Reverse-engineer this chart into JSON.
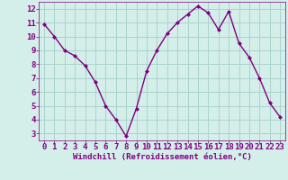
{
  "x": [
    0,
    1,
    2,
    3,
    4,
    5,
    6,
    7,
    8,
    9,
    10,
    11,
    12,
    13,
    14,
    15,
    16,
    17,
    18,
    19,
    20,
    21,
    22,
    23
  ],
  "y": [
    10.9,
    10.0,
    9.0,
    8.6,
    7.9,
    6.7,
    5.0,
    4.0,
    2.8,
    4.8,
    7.5,
    9.0,
    10.2,
    11.0,
    11.6,
    12.2,
    11.7,
    10.5,
    11.8,
    9.5,
    8.5,
    7.0,
    5.2,
    4.2
  ],
  "line_color": "#800080",
  "marker": "D",
  "marker_size": 2.0,
  "bg_color": "#d4eeea",
  "grid_color": "#aad4cc",
  "xlabel": "Windchill (Refroidissement éolien,°C)",
  "tick_color": "#800080",
  "xlim": [
    -0.5,
    23.5
  ],
  "ylim": [
    2.5,
    12.5
  ],
  "yticks": [
    3,
    4,
    5,
    6,
    7,
    8,
    9,
    10,
    11,
    12
  ],
  "xticks": [
    0,
    1,
    2,
    3,
    4,
    5,
    6,
    7,
    8,
    9,
    10,
    11,
    12,
    13,
    14,
    15,
    16,
    17,
    18,
    19,
    20,
    21,
    22,
    23
  ],
  "line_width": 1.0,
  "tick_fontsize": 6.5,
  "xlabel_fontsize": 6.5
}
